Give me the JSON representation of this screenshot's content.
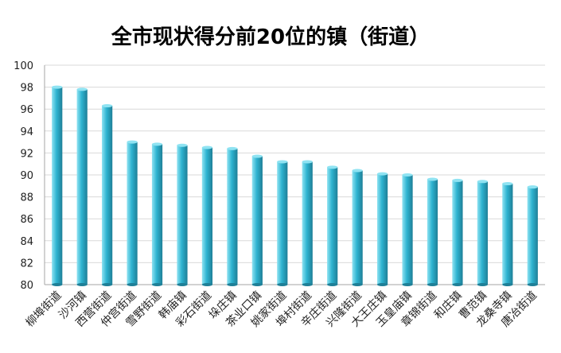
{
  "chart_data": {
    "type": "bar",
    "title": "全市现状得分前20位的镇（街道）",
    "xlabel": "",
    "ylabel": "",
    "ylim": [
      80,
      100
    ],
    "yticks": [
      80,
      82,
      84,
      86,
      88,
      90,
      92,
      94,
      96,
      98,
      100
    ],
    "grid": true,
    "legend": "none",
    "categories": [
      "柳埠街道",
      "沙河镇",
      "西营街道",
      "仲宫街道",
      "雪野街道",
      "韩庙镇",
      "彩石街道",
      "垛庄镇",
      "茶业口镇",
      "姚家街道",
      "埠村街道",
      "辛庄街道",
      "兴隆街道",
      "大王庄镇",
      "玉皇庙镇",
      "章锦街道",
      "和庄镇",
      "曹范镇",
      "龙桑寺镇",
      "唐冶街道"
    ],
    "values": [
      98.0,
      97.8,
      96.3,
      93.0,
      92.8,
      92.7,
      92.5,
      92.4,
      91.7,
      91.2,
      91.2,
      90.7,
      90.4,
      90.1,
      90.0,
      89.6,
      89.5,
      89.4,
      89.2,
      88.9
    ],
    "colors": {
      "bar_light": "#8FE3F2",
      "bar_mid": "#2EB3D0",
      "bar_dark": "#1E7F97",
      "grid": "#D9D9D9",
      "axis": "#A6A6A6"
    }
  }
}
